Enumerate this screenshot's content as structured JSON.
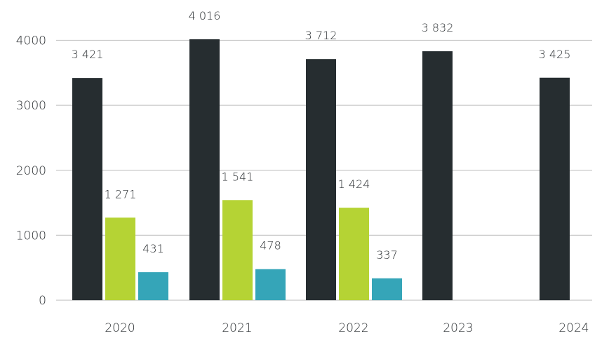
{
  "chart_data": {
    "type": "bar",
    "title": "",
    "xlabel": "",
    "ylabel": "",
    "ylim": [
      0,
      4000
    ],
    "yticks": [
      0,
      1000,
      2000,
      3000,
      4000
    ],
    "ytick_labels": [
      "0",
      "1000",
      "2000",
      "3000",
      "4000"
    ],
    "grid": true,
    "categories": [
      "2020",
      "2021",
      "2022",
      "2023",
      "2024"
    ],
    "series": [
      {
        "name": "Series 1",
        "color": "#262d30",
        "values": [
          3421,
          4016,
          3712,
          3832,
          3425
        ],
        "labels": [
          "3 421",
          "4 016",
          "3 712",
          "3 832",
          "3 425"
        ]
      },
      {
        "name": "Series 2",
        "color": "#b5d334",
        "values": [
          1271,
          1541,
          1424,
          null,
          null
        ],
        "labels": [
          "1 271",
          "1 541",
          "1 424",
          null,
          null
        ]
      },
      {
        "name": "Series 3",
        "color": "#35a5b8",
        "values": [
          431,
          478,
          337,
          null,
          null
        ],
        "labels": [
          "431",
          "478",
          "337",
          null,
          null
        ]
      }
    ]
  }
}
